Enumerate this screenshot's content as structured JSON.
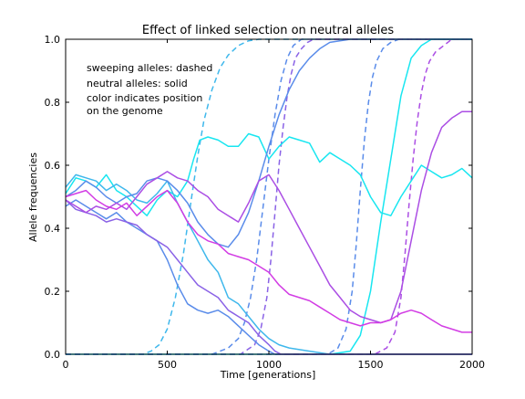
{
  "chart_data": {
    "type": "line",
    "title": "Effect of linked selection on neutral alleles",
    "xlabel": "Time [generations]",
    "ylabel": "Allele frequencies",
    "xlim": [
      0,
      2000
    ],
    "ylim": [
      0,
      1.0
    ],
    "xticks": [
      0,
      500,
      1000,
      1500,
      2000
    ],
    "yticks": [
      0.0,
      0.2,
      0.4,
      0.6,
      0.8,
      1.0
    ],
    "xtick_labels": [
      "0",
      "500",
      "1000",
      "1500",
      "2000"
    ],
    "ytick_labels": [
      "0.0",
      "0.2",
      "0.4",
      "0.6",
      "0.8",
      "1.0"
    ],
    "grid": false,
    "annotations": [
      "sweeping alleles: dashed",
      "neutral alleles: solid",
      "color indicates position",
      "on the genome"
    ],
    "colors": {
      "cyan": "#18e6f0",
      "light_blue": "#3fb8ec",
      "blue": "#5a8cea",
      "violet": "#8a62e6",
      "purple": "#ab4ee4",
      "magenta": "#d23ce4"
    },
    "series": [
      {
        "style": "dashed",
        "color": "#3fb8ec",
        "x": [
          0,
          380,
          420,
          460,
          500,
          540,
          580,
          620,
          650,
          680,
          720,
          760,
          800,
          850,
          900,
          950,
          1000,
          1200,
          1400,
          1600,
          1800,
          2000
        ],
        "y": [
          0,
          0,
          0.01,
          0.03,
          0.08,
          0.18,
          0.32,
          0.5,
          0.63,
          0.74,
          0.84,
          0.91,
          0.95,
          0.98,
          0.995,
          1,
          1,
          1,
          1,
          1,
          1,
          1
        ]
      },
      {
        "style": "dashed",
        "color": "#5a8cea",
        "x": [
          0,
          720,
          800,
          850,
          880,
          910,
          940,
          970,
          1000,
          1030,
          1060,
          1090,
          1120,
          1160,
          1200,
          1300,
          1400,
          1600,
          1800,
          2000
        ],
        "y": [
          0,
          0,
          0.02,
          0.05,
          0.1,
          0.18,
          0.3,
          0.46,
          0.62,
          0.76,
          0.87,
          0.94,
          0.98,
          1,
          1,
          1,
          1,
          1,
          1,
          1
        ]
      },
      {
        "style": "dashed",
        "color": "#8a62e6",
        "x": [
          0,
          860,
          930,
          960,
          990,
          1010,
          1030,
          1050,
          1070,
          1090,
          1110,
          1130,
          1160,
          1190,
          1220,
          1400,
          1600,
          1800,
          2000
        ],
        "y": [
          0,
          0,
          0.03,
          0.08,
          0.18,
          0.3,
          0.45,
          0.6,
          0.72,
          0.82,
          0.89,
          0.94,
          0.97,
          0.99,
          1,
          1,
          1,
          1,
          1
        ]
      },
      {
        "style": "dashed",
        "color": "#5a8cea",
        "x": [
          0,
          1290,
          1340,
          1380,
          1410,
          1430,
          1450,
          1470,
          1490,
          1510,
          1530,
          1560,
          1600,
          1640,
          1700,
          1800,
          2000
        ],
        "y": [
          0,
          0,
          0.02,
          0.08,
          0.2,
          0.35,
          0.52,
          0.68,
          0.8,
          0.88,
          0.93,
          0.97,
          0.99,
          1,
          1,
          1,
          1
        ]
      },
      {
        "style": "dashed",
        "color": "#ab4ee4",
        "x": [
          0,
          1520,
          1580,
          1620,
          1650,
          1670,
          1690,
          1710,
          1730,
          1750,
          1770,
          1790,
          1820,
          1860,
          1900,
          1950,
          2000
        ],
        "y": [
          0,
          0,
          0.02,
          0.07,
          0.18,
          0.32,
          0.48,
          0.62,
          0.74,
          0.83,
          0.89,
          0.93,
          0.96,
          0.98,
          1,
          1,
          1
        ]
      },
      {
        "style": "solid",
        "color": "#18e6f0",
        "x": [
          0,
          50,
          100,
          150,
          200,
          250,
          300,
          350,
          400,
          450,
          500,
          550,
          600,
          630,
          660,
          700,
          750,
          800,
          850,
          900,
          950,
          1000,
          1050,
          1100,
          1150,
          1200,
          1250,
          1300,
          1350,
          1400,
          1450,
          1500,
          1550,
          1600,
          1650,
          1700,
          1750,
          1800,
          1850,
          1900,
          1950,
          2000
        ],
        "y": [
          0.51,
          0.56,
          0.55,
          0.53,
          0.57,
          0.52,
          0.5,
          0.47,
          0.44,
          0.49,
          0.52,
          0.5,
          0.55,
          0.62,
          0.68,
          0.69,
          0.68,
          0.66,
          0.66,
          0.7,
          0.69,
          0.62,
          0.66,
          0.69,
          0.68,
          0.67,
          0.61,
          0.64,
          0.62,
          0.6,
          0.57,
          0.5,
          0.45,
          0.44,
          0.5,
          0.55,
          0.6,
          0.58,
          0.56,
          0.57,
          0.59,
          0.56
        ]
      },
      {
        "style": "solid",
        "color": "#18e6f0",
        "x": [
          0,
          100,
          200,
          300,
          400,
          500,
          600,
          700,
          800,
          900,
          1000,
          1100,
          1200,
          1300,
          1400,
          1450,
          1500,
          1550,
          1600,
          1650,
          1700,
          1750,
          1800,
          1850,
          1900,
          1950,
          1980,
          2000
        ],
        "y": [
          0,
          0,
          0,
          0,
          0,
          0,
          0,
          0,
          0,
          0,
          0,
          0,
          0,
          0,
          0.01,
          0.06,
          0.2,
          0.42,
          0.62,
          0.82,
          0.94,
          0.98,
          1,
          1,
          1,
          1,
          1,
          1
        ]
      },
      {
        "style": "solid",
        "color": "#3fb8ec",
        "x": [
          0,
          50,
          100,
          150,
          200,
          250,
          300,
          350,
          400,
          450,
          500,
          550,
          600,
          650,
          700,
          750,
          800,
          850,
          900,
          950,
          1000,
          1050,
          1100,
          1200,
          1300,
          1400,
          1500,
          1600,
          1700,
          1800,
          1900,
          2000
        ],
        "y": [
          0.53,
          0.57,
          0.56,
          0.55,
          0.52,
          0.54,
          0.52,
          0.49,
          0.48,
          0.51,
          0.55,
          0.48,
          0.42,
          0.36,
          0.3,
          0.26,
          0.18,
          0.16,
          0.12,
          0.08,
          0.05,
          0.03,
          0.02,
          0.01,
          0,
          0,
          0,
          0,
          0,
          0,
          0,
          0
        ]
      },
      {
        "style": "solid",
        "color": "#5a8cea",
        "x": [
          0,
          50,
          100,
          150,
          200,
          250,
          300,
          350,
          400,
          450,
          500,
          550,
          600,
          650,
          700,
          750,
          800,
          850,
          900,
          950,
          1000,
          1050,
          1100,
          1150,
          1200,
          1250,
          1300,
          1400,
          1500,
          1600,
          1800,
          2000
        ],
        "y": [
          0.5,
          0.52,
          0.55,
          0.53,
          0.5,
          0.48,
          0.5,
          0.51,
          0.55,
          0.56,
          0.55,
          0.52,
          0.48,
          0.42,
          0.38,
          0.35,
          0.34,
          0.38,
          0.45,
          0.55,
          0.66,
          0.76,
          0.84,
          0.9,
          0.94,
          0.97,
          0.99,
          1,
          1,
          1,
          1,
          1
        ]
      },
      {
        "style": "solid",
        "color": "#5a8cea",
        "x": [
          0,
          50,
          100,
          150,
          200,
          250,
          300,
          350,
          400,
          450,
          500,
          550,
          600,
          650,
          700,
          750,
          800,
          850,
          900,
          950,
          1000,
          1030,
          1060,
          1100,
          1200,
          1300,
          1400,
          1600,
          1800,
          2000
        ],
        "y": [
          0.47,
          0.49,
          0.47,
          0.45,
          0.43,
          0.45,
          0.42,
          0.4,
          0.38,
          0.36,
          0.3,
          0.22,
          0.16,
          0.14,
          0.13,
          0.14,
          0.12,
          0.09,
          0.06,
          0.03,
          0.01,
          0,
          0,
          0,
          0,
          0,
          0,
          0,
          0,
          0
        ]
      },
      {
        "style": "solid",
        "color": "#8a62e6",
        "x": [
          0,
          50,
          100,
          150,
          200,
          250,
          300,
          350,
          400,
          450,
          500,
          550,
          600,
          650,
          700,
          750,
          800,
          850,
          900,
          950,
          1000,
          1030,
          1060,
          1100,
          1200,
          1400,
          1600,
          1800,
          2000
        ],
        "y": [
          0.49,
          0.46,
          0.45,
          0.44,
          0.42,
          0.43,
          0.42,
          0.41,
          0.38,
          0.36,
          0.34,
          0.3,
          0.26,
          0.22,
          0.2,
          0.18,
          0.14,
          0.12,
          0.1,
          0.06,
          0.03,
          0.01,
          0,
          0,
          0,
          0,
          0,
          0,
          0
        ]
      },
      {
        "style": "solid",
        "color": "#ab4ee4",
        "x": [
          0,
          50,
          100,
          150,
          200,
          250,
          300,
          350,
          400,
          450,
          500,
          550,
          600,
          650,
          700,
          750,
          800,
          850,
          900,
          950,
          1000,
          1050,
          1100,
          1150,
          1200,
          1250,
          1300,
          1350,
          1400,
          1450,
          1500,
          1550,
          1600,
          1650,
          1700,
          1750,
          1800,
          1850,
          1900,
          1950,
          2000
        ],
        "y": [
          0.49,
          0.47,
          0.45,
          0.47,
          0.46,
          0.48,
          0.46,
          0.5,
          0.54,
          0.56,
          0.58,
          0.56,
          0.55,
          0.52,
          0.5,
          0.46,
          0.44,
          0.42,
          0.48,
          0.55,
          0.57,
          0.52,
          0.46,
          0.4,
          0.34,
          0.28,
          0.22,
          0.18,
          0.14,
          0.12,
          0.11,
          0.1,
          0.11,
          0.2,
          0.36,
          0.52,
          0.64,
          0.72,
          0.75,
          0.77,
          0.77
        ]
      },
      {
        "style": "solid",
        "color": "#d23ce4",
        "x": [
          0,
          50,
          100,
          150,
          200,
          250,
          300,
          350,
          400,
          450,
          500,
          550,
          600,
          650,
          700,
          750,
          800,
          850,
          900,
          950,
          1000,
          1050,
          1100,
          1150,
          1200,
          1250,
          1300,
          1350,
          1400,
          1450,
          1500,
          1550,
          1600,
          1650,
          1700,
          1750,
          1800,
          1850,
          1900,
          1950,
          2000
        ],
        "y": [
          0.5,
          0.51,
          0.52,
          0.49,
          0.47,
          0.46,
          0.48,
          0.44,
          0.47,
          0.5,
          0.52,
          0.48,
          0.42,
          0.38,
          0.36,
          0.35,
          0.32,
          0.31,
          0.3,
          0.28,
          0.26,
          0.22,
          0.19,
          0.18,
          0.17,
          0.15,
          0.13,
          0.11,
          0.1,
          0.09,
          0.1,
          0.1,
          0.11,
          0.13,
          0.14,
          0.13,
          0.11,
          0.09,
          0.08,
          0.07,
          0.07
        ]
      }
    ]
  }
}
